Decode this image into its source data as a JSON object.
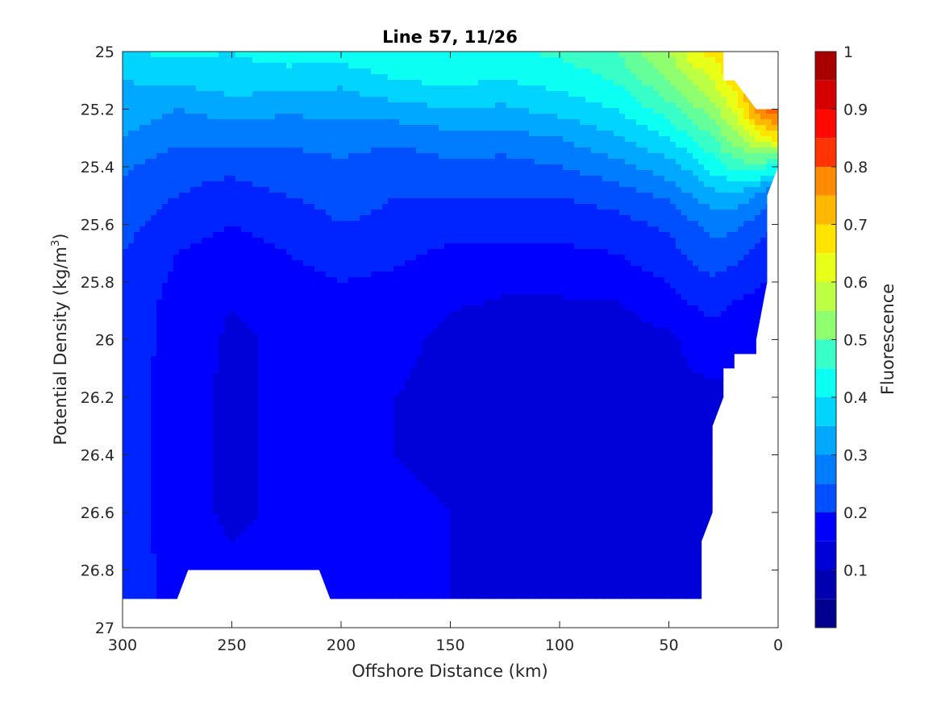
{
  "chart_data": {
    "type": "contour",
    "title": "Line 57, 11/26",
    "xlabel": "Offshore Distance (km)",
    "ylabel_main": "Potential Density (kg/m",
    "ylabel_sup": "3",
    "ylabel_close": ")",
    "colorbar_label": "Fluorescence",
    "xlim": [
      300,
      0
    ],
    "ylim": [
      25,
      27
    ],
    "x_reversed": true,
    "y_reversed": true,
    "x_ticks": [
      300,
      250,
      200,
      150,
      100,
      50,
      0
    ],
    "x_tick_labels": [
      "300",
      "250",
      "200",
      "150",
      "100",
      "50",
      "0"
    ],
    "y_ticks": [
      25,
      25.2,
      25.4,
      25.6,
      25.8,
      26,
      26.2,
      26.4,
      26.6,
      26.8,
      27
    ],
    "y_tick_labels": [
      "25",
      "25.2",
      "25.4",
      "25.6",
      "25.8",
      "26",
      "26.2",
      "26.4",
      "26.6",
      "26.8",
      "27"
    ],
    "colorbar_range": [
      0,
      1
    ],
    "colorbar_ticks": [
      0.1,
      0.2,
      0.3,
      0.4,
      0.5,
      0.6,
      0.7,
      0.8,
      0.9,
      1
    ],
    "colorbar_tick_labels": [
      "0.1",
      "0.2",
      "0.3",
      "0.4",
      "0.5",
      "0.6",
      "0.7",
      "0.8",
      "0.9",
      "1"
    ],
    "levels": [
      0,
      0.05,
      0.1,
      0.15,
      0.2,
      0.25,
      0.3,
      0.35,
      0.4,
      0.45,
      0.5,
      0.55,
      0.6,
      0.65,
      0.7,
      0.75,
      0.8,
      0.85,
      0.9,
      0.95,
      1.0
    ],
    "level_colors": [
      "#00008f",
      "#0000b3",
      "#0000d9",
      "#0000ff",
      "#0024ff",
      "#0050ff",
      "#007cff",
      "#00a8ff",
      "#00d4ff",
      "#0cfff3",
      "#38ffc7",
      "#64ff9b",
      "#90ff6f",
      "#bcff43",
      "#e8ff17",
      "#ffe400",
      "#ffb800",
      "#ff8c00",
      "#ff6000",
      "#ff3400",
      "#ff0800",
      "#d40000",
      "#a80000"
    ],
    "colormap": "jet",
    "data_extent": {
      "x_min": 0,
      "x_max": 300,
      "y_min": 25,
      "y_max": 26.9,
      "bottom_profile": [
        [
          300,
          26.9
        ],
        [
          292,
          26.9
        ],
        [
          283,
          26.9
        ],
        [
          275,
          26.9
        ],
        [
          270,
          26.8
        ],
        [
          210,
          26.8
        ],
        [
          205,
          26.9
        ],
        [
          35,
          26.9
        ],
        [
          35,
          26.7
        ],
        [
          30,
          26.6
        ],
        [
          30,
          26.3
        ],
        [
          25,
          26.2
        ],
        [
          25,
          26.1
        ],
        [
          20,
          26.1
        ],
        [
          20,
          26.05
        ],
        [
          10,
          26.05
        ],
        [
          10,
          26.0
        ],
        [
          5,
          25.8
        ],
        [
          5,
          25.5
        ],
        [
          0,
          25.4
        ],
        [
          0,
          25.2
        ],
        [
          10,
          25.2
        ],
        [
          10,
          25.2
        ],
        [
          20,
          25.1
        ],
        [
          25,
          25.1
        ],
        [
          25,
          25.0
        ]
      ]
    },
    "fluorescence_field": {
      "x": [
        300,
        275,
        250,
        225,
        200,
        175,
        150,
        125,
        100,
        75,
        50,
        40,
        30,
        20,
        10,
        5,
        0
      ],
      "y": [
        25.0,
        25.1,
        25.2,
        25.3,
        25.4,
        25.5,
        25.6,
        25.7,
        25.8,
        25.9,
        26.0,
        26.2,
        26.4,
        26.6,
        26.8,
        26.9
      ],
      "z": [
        [
          0.4,
          0.41,
          0.4,
          0.42,
          0.43,
          0.44,
          0.45,
          0.44,
          0.46,
          0.5,
          0.6,
          0.68,
          0.72,
          0.74,
          0.75,
          0.75,
          0.75
        ],
        [
          0.35,
          0.36,
          0.38,
          0.38,
          0.36,
          0.4,
          0.41,
          0.4,
          0.42,
          0.45,
          0.55,
          0.6,
          0.65,
          0.73,
          0.78,
          0.8,
          0.82
        ],
        [
          0.33,
          0.3,
          0.32,
          0.31,
          0.32,
          0.33,
          0.35,
          0.34,
          0.37,
          0.4,
          0.48,
          0.53,
          0.58,
          0.66,
          0.82,
          0.86,
          0.9
        ],
        [
          0.3,
          0.26,
          0.27,
          0.26,
          0.27,
          0.26,
          0.28,
          0.28,
          0.3,
          0.34,
          0.4,
          0.45,
          0.5,
          0.58,
          0.66,
          0.7,
          0.72
        ],
        [
          0.26,
          0.22,
          0.21,
          0.23,
          0.24,
          0.22,
          0.24,
          0.23,
          0.25,
          0.28,
          0.33,
          0.36,
          0.42,
          0.47,
          0.48,
          0.45,
          0.44
        ],
        [
          0.24,
          0.2,
          0.18,
          0.2,
          0.22,
          0.2,
          0.2,
          0.2,
          0.2,
          0.22,
          0.26,
          0.3,
          0.33,
          0.33,
          0.3,
          0.26,
          0.26
        ],
        [
          0.22,
          0.17,
          0.15,
          0.17,
          0.2,
          0.19,
          0.17,
          0.17,
          0.17,
          0.18,
          0.21,
          0.24,
          0.27,
          0.26,
          0.23,
          0.21,
          0.21
        ],
        [
          0.2,
          0.15,
          0.13,
          0.15,
          0.17,
          0.16,
          0.14,
          0.14,
          0.14,
          0.15,
          0.18,
          0.21,
          0.23,
          0.22,
          0.19,
          0.18,
          0.18
        ],
        [
          0.19,
          0.14,
          0.11,
          0.13,
          0.15,
          0.14,
          0.12,
          0.11,
          0.11,
          0.12,
          0.15,
          0.18,
          0.19,
          0.17,
          0.16,
          0.15,
          0.15
        ],
        [
          0.18,
          0.13,
          0.1,
          0.12,
          0.14,
          0.12,
          0.1,
          0.09,
          0.09,
          0.09,
          0.12,
          0.14,
          0.16,
          0.14,
          0.13,
          0.12,
          0.12
        ],
        [
          0.18,
          0.13,
          0.09,
          0.11,
          0.13,
          0.11,
          0.09,
          0.09,
          0.09,
          0.09,
          0.09,
          0.11,
          0.12,
          0.12,
          0.11,
          0.11,
          0.11
        ],
        [
          0.18,
          0.12,
          0.09,
          0.11,
          0.12,
          0.1,
          0.09,
          0.09,
          0.09,
          0.09,
          0.09,
          0.09,
          0.09,
          0.09,
          0.09,
          0.09,
          0.09
        ],
        [
          0.18,
          0.12,
          0.09,
          0.11,
          0.12,
          0.1,
          0.09,
          0.09,
          0.09,
          0.09,
          0.09,
          0.09,
          0.09,
          0.09,
          0.09,
          0.09,
          0.09
        ],
        [
          0.18,
          0.12,
          0.09,
          0.11,
          0.12,
          0.11,
          0.1,
          0.09,
          0.09,
          0.09,
          0.09,
          0.07,
          0.09,
          0.09,
          0.09,
          0.09,
          0.09
        ],
        [
          0.18,
          0.13,
          0.11,
          0.11,
          0.11,
          0.11,
          0.1,
          0.09,
          0.09,
          0.09,
          0.09,
          0.07,
          0.09,
          0.09,
          0.09,
          0.09,
          0.09
        ],
        [
          0.18,
          0.13,
          0.11,
          0.11,
          0.11,
          0.11,
          0.1,
          0.09,
          0.09,
          0.09,
          0.09,
          0.07,
          0.09,
          0.09,
          0.09,
          0.09,
          0.09
        ]
      ]
    },
    "colors": {
      "axis": "#262626",
      "title": "#000000",
      "nan_fill": "#ffffff",
      "contour_line": "#000000"
    }
  }
}
